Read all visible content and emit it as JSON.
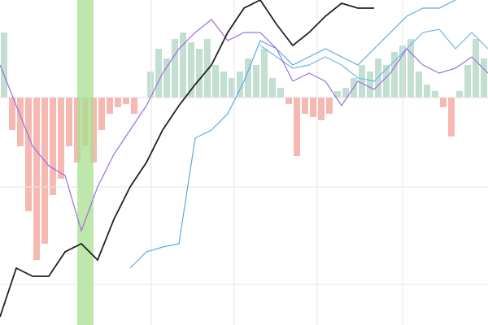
{
  "chart_data": [
    {
      "type": "histogram",
      "bins": [
        0,
        1,
        2,
        3,
        4,
        5,
        6,
        7,
        8,
        9,
        10,
        11,
        12,
        13,
        14,
        15,
        16,
        17,
        18,
        19,
        20,
        21,
        22,
        23,
        24,
        25,
        26,
        27,
        28,
        29,
        30,
        31,
        32,
        33,
        34,
        35,
        36,
        37,
        38,
        39,
        40,
        41,
        42,
        43,
        44,
        45,
        46,
        47,
        48,
        49,
        50,
        51,
        52,
        53,
        54,
        55,
        56,
        57,
        58,
        59,
        60
      ],
      "values": [
        20,
        -10,
        -15,
        -35,
        -50,
        -45,
        -30,
        -25,
        -15,
        -20,
        -15,
        -20,
        -10,
        -5,
        -3,
        -2,
        -5,
        0,
        8,
        15,
        12,
        18,
        20,
        17,
        15,
        18,
        10,
        8,
        6,
        8,
        12,
        10,
        15,
        6,
        3,
        -2,
        -18,
        -5,
        -6,
        -7,
        -5,
        2,
        3,
        6,
        10,
        8,
        12,
        10,
        14,
        16,
        18,
        8,
        4,
        2,
        -3,
        -12,
        2,
        10,
        18,
        12
      ],
      "positive_color": "#b7d9c9",
      "negative_color": "#f5aca5",
      "xlim": [
        0,
        60
      ],
      "ylim": [
        -70,
        30
      ]
    },
    {
      "type": "line",
      "x": [
        0,
        2,
        4,
        6,
        8,
        10,
        12,
        14,
        16,
        18,
        20,
        22,
        24,
        26,
        28,
        30,
        32,
        34,
        36,
        38,
        40,
        42,
        44,
        46,
        48,
        50,
        52,
        54,
        56,
        58,
        60
      ],
      "series": [
        {
          "color": "#5aa9e6",
          "values": [
            null,
            null,
            null,
            null,
            null,
            null,
            null,
            null,
            17.5,
            22.5,
            24,
            25,
            57.5,
            60,
            65,
            75,
            87.5,
            85,
            80,
            82.5,
            85,
            82.5,
            80,
            85,
            90,
            95,
            97.5,
            97.5,
            100,
            null,
            null
          ]
        },
        {
          "color": "#6fb4ea",
          "values": [
            null,
            null,
            null,
            null,
            null,
            null,
            null,
            null,
            null,
            null,
            null,
            null,
            null,
            null,
            null,
            null,
            86,
            82.5,
            79,
            80,
            82.5,
            80,
            76,
            75,
            80,
            85,
            90,
            91,
            85,
            90,
            85
          ]
        },
        {
          "color": "#9b6de0",
          "values": [
            80,
            67.5,
            55,
            49,
            46,
            29,
            42.5,
            52.5,
            60,
            67.5,
            77.5,
            85,
            90,
            94,
            87.5,
            90,
            90,
            85,
            75,
            77.5,
            75,
            67.5,
            75,
            72.5,
            77.5,
            85,
            80,
            77.5,
            79,
            82.5,
            77.5
          ]
        },
        {
          "color": "#222222",
          "values": [
            2.5,
            17.5,
            15,
            15,
            22.5,
            25,
            20,
            32.5,
            42.5,
            50,
            60,
            67.5,
            74,
            80,
            90,
            97.5,
            100,
            92.5,
            86,
            90,
            95,
            99,
            97.5,
            97.5,
            null,
            null,
            null,
            null,
            null,
            null,
            null
          ]
        }
      ],
      "shaded_region": [
        9.5,
        11.5
      ],
      "shaded_color": "#a8e08f",
      "xlim": [
        0,
        60
      ],
      "ylim": [
        0,
        100
      ],
      "xticks": [
        18.6,
        28.8,
        39,
        49.5
      ],
      "yticks": [
        12.5,
        42.5
      ],
      "grid": true
    }
  ]
}
